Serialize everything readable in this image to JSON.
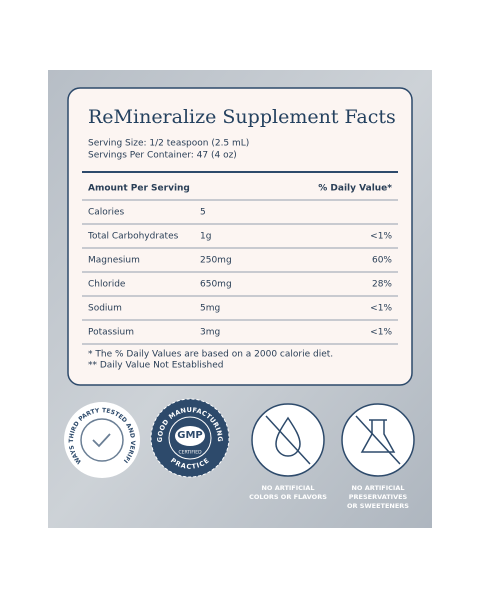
{
  "panel": {
    "title": "ReMineralize Supplement Facts",
    "serving_size": "Serving Size: 1/2 teaspoon (2.5 mL)",
    "servings_per_container": "Servings Per Container: 47 (4 oz)",
    "header": {
      "amount": "Amount Per Serving",
      "daily_value": "% Daily Value*"
    },
    "rows": [
      [
        "Calories",
        "5"
      ],
      [
        "Total Carbohydrates",
        "1g",
        "<1%"
      ],
      [
        "Magnesium",
        "250mg",
        "60%"
      ],
      [
        "Chloride",
        "650mg",
        "28%"
      ],
      [
        "Sodium",
        "5mg",
        "<1%"
      ],
      [
        "Potassium",
        "3mg",
        "<1%"
      ]
    ],
    "footnotes": [
      "* The % Daily Values are based on a 2000 calorie diet.",
      "** Daily Value Not Established"
    ]
  },
  "badges": [
    {
      "ring_text": "ALWAYS THIRD PARTY TESTED AND VERIFIED"
    },
    {
      "ring_top": "GOOD MANUFACTURING",
      "ring_bottom": "PRACTICE",
      "center": "GMP",
      "subtitle": "CERTIFIED"
    },
    {
      "caption": [
        "NO ARTIFICIAL",
        "COLORS OR FLAVORS"
      ]
    },
    {
      "caption": [
        "NO ARTIFICIAL",
        "PRESERVATIVES",
        "OR SWEETENERS"
      ]
    }
  ]
}
